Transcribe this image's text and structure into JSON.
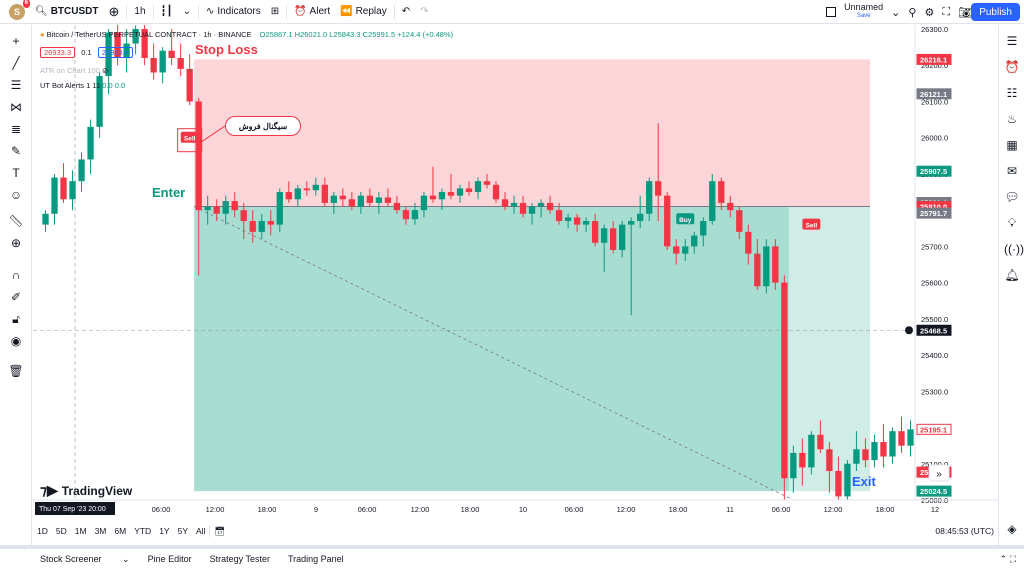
{
  "topbar": {
    "avatar_letter": "S",
    "notif_count": "6",
    "symbol": "BTCUSDT",
    "interval": "1h",
    "indicators": "Indicators",
    "alert": "Alert",
    "replay": "Replay",
    "layout_name": "Unnamed",
    "layout_status": "Save",
    "publish": "Publish"
  },
  "legend": {
    "title": "Bitcoin / TetherUS PERPETUAL CONTRACT · 1h · BINANCE",
    "ohlc": "O25867.1 H26021.0 L25843.3 C25991.5 +124.4 (+0.48%)",
    "bid": "26933.3",
    "spread": "0.1",
    "ask": "26933.4",
    "ind1": "ATR on Chart 100",
    "ind2": "UT Bot Alerts 1 11",
    "ind2_vals": "0.0  0.0"
  },
  "annotations": {
    "stop_loss": "Stop Loss",
    "enter": "Enter",
    "exit": "Exit",
    "sell_signal": "سیگنال فروش",
    "sell_tag": "Sell",
    "buy_tag": "Buy"
  },
  "price_axis": {
    "ticks": [
      "26300.0",
      "26200.0",
      "26100.0",
      "26000.0",
      "25900.0",
      "25800.0",
      "25700.0",
      "25600.0",
      "25500.0",
      "25400.0",
      "25300.0",
      "25200.0",
      "25100.0",
      "25000.0"
    ],
    "labels": [
      {
        "text": "26216.1",
        "color": "#f23645"
      },
      {
        "text": "26121.1",
        "color": "#787b86"
      },
      {
        "text": "25907.5",
        "color": "#089981"
      },
      {
        "text": "25821.1",
        "color": "#787b86"
      },
      {
        "text": "25810.0",
        "color": "#f23645"
      },
      {
        "text": "25791.7",
        "color": "#787b86"
      },
      {
        "text": "25468.5",
        "color": "#131722"
      },
      {
        "text": "25195.1",
        "color": "#f23645"
      },
      {
        "text": "25076.8",
        "color": "#f23645"
      },
      {
        "text": "25024.5",
        "color": "#089981"
      }
    ]
  },
  "time_axis": {
    "ticks": [
      "06:00",
      "12:00",
      "18:00",
      "9",
      "06:00",
      "12:00",
      "18:00",
      "10",
      "06:00",
      "12:00",
      "18:00",
      "11",
      "06:00",
      "12:00",
      "18:00",
      "12"
    ],
    "crosshair": "Thu 07 Sep '23",
    "crosshair_time": "20:00"
  },
  "bottombar": {
    "ranges": [
      "1D",
      "5D",
      "1M",
      "3M",
      "6M",
      "YTD",
      "1Y",
      "5Y",
      "All"
    ],
    "clock": "08:45:53 (UTC)"
  },
  "footer": {
    "tabs": [
      "Stock Screener",
      "Pine Editor",
      "Strategy Tester",
      "Trading Panel"
    ]
  },
  "colors": {
    "up": "#089981",
    "down": "#f23645",
    "stop_zone": "#fcd5d8",
    "target_zone": "#a8ddd2"
  },
  "chart_data": {
    "type": "candlestick",
    "y_range": [
      25000,
      26300
    ],
    "candles": [
      {
        "o": 25760,
        "h": 25800,
        "l": 25740,
        "c": 25790
      },
      {
        "o": 25790,
        "h": 25900,
        "l": 25760,
        "c": 25890
      },
      {
        "o": 25890,
        "h": 25930,
        "l": 25820,
        "c": 25830
      },
      {
        "o": 25830,
        "h": 25910,
        "l": 25800,
        "c": 25880
      },
      {
        "o": 25880,
        "h": 25960,
        "l": 25850,
        "c": 25940
      },
      {
        "o": 25940,
        "h": 26050,
        "l": 25900,
        "c": 26030
      },
      {
        "o": 26030,
        "h": 26180,
        "l": 26000,
        "c": 26170
      },
      {
        "o": 26170,
        "h": 26300,
        "l": 26120,
        "c": 26290
      },
      {
        "o": 26290,
        "h": 26330,
        "l": 26200,
        "c": 26220
      },
      {
        "o": 26220,
        "h": 26300,
        "l": 26180,
        "c": 26260
      },
      {
        "o": 26260,
        "h": 26310,
        "l": 26230,
        "c": 26300
      },
      {
        "o": 26300,
        "h": 26320,
        "l": 26200,
        "c": 26220
      },
      {
        "o": 26220,
        "h": 26260,
        "l": 26160,
        "c": 26180
      },
      {
        "o": 26180,
        "h": 26250,
        "l": 26150,
        "c": 26240
      },
      {
        "o": 26240,
        "h": 26300,
        "l": 26200,
        "c": 26220
      },
      {
        "o": 26220,
        "h": 26260,
        "l": 26170,
        "c": 26190
      },
      {
        "o": 26190,
        "h": 26230,
        "l": 26090,
        "c": 26100
      },
      {
        "o": 26100,
        "h": 26110,
        "l": 25620,
        "c": 25800
      },
      {
        "o": 25800,
        "h": 25840,
        "l": 25760,
        "c": 25810
      },
      {
        "o": 25810,
        "h": 25830,
        "l": 25770,
        "c": 25790
      },
      {
        "o": 25790,
        "h": 25840,
        "l": 25760,
        "c": 25825
      },
      {
        "o": 25825,
        "h": 25850,
        "l": 25780,
        "c": 25800
      },
      {
        "o": 25800,
        "h": 25820,
        "l": 25720,
        "c": 25770
      },
      {
        "o": 25770,
        "h": 25800,
        "l": 25710,
        "c": 25740
      },
      {
        "o": 25740,
        "h": 25790,
        "l": 25720,
        "c": 25770
      },
      {
        "o": 25770,
        "h": 25800,
        "l": 25730,
        "c": 25760
      },
      {
        "o": 25760,
        "h": 25860,
        "l": 25740,
        "c": 25850
      },
      {
        "o": 25850,
        "h": 25880,
        "l": 25820,
        "c": 25830
      },
      {
        "o": 25830,
        "h": 25870,
        "l": 25810,
        "c": 25860
      },
      {
        "o": 25860,
        "h": 25880,
        "l": 25840,
        "c": 25855
      },
      {
        "o": 25855,
        "h": 25890,
        "l": 25840,
        "c": 25870
      },
      {
        "o": 25870,
        "h": 25890,
        "l": 25810,
        "c": 25820
      },
      {
        "o": 25820,
        "h": 25850,
        "l": 25790,
        "c": 25840
      },
      {
        "o": 25840,
        "h": 25860,
        "l": 25810,
        "c": 25830
      },
      {
        "o": 25830,
        "h": 25850,
        "l": 25800,
        "c": 25810
      },
      {
        "o": 25810,
        "h": 25850,
        "l": 25790,
        "c": 25840
      },
      {
        "o": 25840,
        "h": 25860,
        "l": 25810,
        "c": 25820
      },
      {
        "o": 25820,
        "h": 25850,
        "l": 25790,
        "c": 25835
      },
      {
        "o": 25835,
        "h": 25860,
        "l": 25810,
        "c": 25820
      },
      {
        "o": 25820,
        "h": 25840,
        "l": 25790,
        "c": 25800
      },
      {
        "o": 25800,
        "h": 25810,
        "l": 25760,
        "c": 25775
      },
      {
        "o": 25775,
        "h": 25820,
        "l": 25760,
        "c": 25800
      },
      {
        "o": 25800,
        "h": 25850,
        "l": 25780,
        "c": 25840
      },
      {
        "o": 25840,
        "h": 25920,
        "l": 25820,
        "c": 25830
      },
      {
        "o": 25830,
        "h": 25860,
        "l": 25800,
        "c": 25850
      },
      {
        "o": 25850,
        "h": 25900,
        "l": 25830,
        "c": 25840
      },
      {
        "o": 25840,
        "h": 25870,
        "l": 25820,
        "c": 25860
      },
      {
        "o": 25860,
        "h": 25880,
        "l": 25840,
        "c": 25850
      },
      {
        "o": 25850,
        "h": 25890,
        "l": 25830,
        "c": 25880
      },
      {
        "o": 25880,
        "h": 25900,
        "l": 25860,
        "c": 25870
      },
      {
        "o": 25870,
        "h": 25880,
        "l": 25820,
        "c": 25830
      },
      {
        "o": 25830,
        "h": 25850,
        "l": 25800,
        "c": 25810
      },
      {
        "o": 25810,
        "h": 25840,
        "l": 25790,
        "c": 25820
      },
      {
        "o": 25820,
        "h": 25840,
        "l": 25780,
        "c": 25790
      },
      {
        "o": 25790,
        "h": 25820,
        "l": 25760,
        "c": 25810
      },
      {
        "o": 25810,
        "h": 25830,
        "l": 25780,
        "c": 25820
      },
      {
        "o": 25820,
        "h": 25840,
        "l": 25790,
        "c": 25800
      },
      {
        "o": 25800,
        "h": 25820,
        "l": 25760,
        "c": 25770
      },
      {
        "o": 25770,
        "h": 25790,
        "l": 25750,
        "c": 25780
      },
      {
        "o": 25780,
        "h": 25790,
        "l": 25740,
        "c": 25760
      },
      {
        "o": 25760,
        "h": 25780,
        "l": 25740,
        "c": 25770
      },
      {
        "o": 25770,
        "h": 25790,
        "l": 25700,
        "c": 25710
      },
      {
        "o": 25710,
        "h": 25760,
        "l": 25630,
        "c": 25750
      },
      {
        "o": 25750,
        "h": 25770,
        "l": 25680,
        "c": 25690
      },
      {
        "o": 25690,
        "h": 25770,
        "l": 25670,
        "c": 25760
      },
      {
        "o": 25760,
        "h": 25780,
        "l": 25510,
        "c": 25770
      },
      {
        "o": 25770,
        "h": 25840,
        "l": 25750,
        "c": 25790
      },
      {
        "o": 25790,
        "h": 25890,
        "l": 25770,
        "c": 25880
      },
      {
        "o": 25880,
        "h": 26040,
        "l": 25770,
        "c": 25840
      },
      {
        "o": 25840,
        "h": 25850,
        "l": 25690,
        "c": 25700
      },
      {
        "o": 25700,
        "h": 25720,
        "l": 25650,
        "c": 25680
      },
      {
        "o": 25680,
        "h": 25720,
        "l": 25660,
        "c": 25700
      },
      {
        "o": 25700,
        "h": 25740,
        "l": 25680,
        "c": 25730
      },
      {
        "o": 25730,
        "h": 25780,
        "l": 25700,
        "c": 25770
      },
      {
        "o": 25770,
        "h": 25900,
        "l": 25760,
        "c": 25880
      },
      {
        "o": 25880,
        "h": 25890,
        "l": 25800,
        "c": 25820
      },
      {
        "o": 25820,
        "h": 25840,
        "l": 25780,
        "c": 25800
      },
      {
        "o": 25800,
        "h": 25810,
        "l": 25720,
        "c": 25740
      },
      {
        "o": 25740,
        "h": 25760,
        "l": 25650,
        "c": 25680
      },
      {
        "o": 25680,
        "h": 25720,
        "l": 25580,
        "c": 25590
      },
      {
        "o": 25590,
        "h": 25720,
        "l": 25570,
        "c": 25700
      },
      {
        "o": 25700,
        "h": 25720,
        "l": 25580,
        "c": 25600
      },
      {
        "o": 25600,
        "h": 25620,
        "l": 25000,
        "c": 25060
      },
      {
        "o": 25060,
        "h": 25150,
        "l": 25020,
        "c": 25130
      },
      {
        "o": 25130,
        "h": 25170,
        "l": 25040,
        "c": 25090
      },
      {
        "o": 25090,
        "h": 25190,
        "l": 25070,
        "c": 25180
      },
      {
        "o": 25180,
        "h": 25220,
        "l": 25130,
        "c": 25140
      },
      {
        "o": 25140,
        "h": 25160,
        "l": 25020,
        "c": 25080
      },
      {
        "o": 25080,
        "h": 25120,
        "l": 25000,
        "c": 25010
      },
      {
        "o": 25010,
        "h": 25110,
        "l": 25000,
        "c": 25100
      },
      {
        "o": 25100,
        "h": 25190,
        "l": 25080,
        "c": 25140
      },
      {
        "o": 25140,
        "h": 25170,
        "l": 25090,
        "c": 25110
      },
      {
        "o": 25110,
        "h": 25180,
        "l": 25090,
        "c": 25160
      },
      {
        "o": 25160,
        "h": 25210,
        "l": 25090,
        "c": 25120
      },
      {
        "o": 25120,
        "h": 25200,
        "l": 25100,
        "c": 25190
      },
      {
        "o": 25190,
        "h": 25230,
        "l": 25130,
        "c": 25150
      },
      {
        "o": 25150,
        "h": 25220,
        "l": 25120,
        "c": 25195
      }
    ],
    "position": {
      "entry": 25810,
      "stop": 26216.1,
      "target": 25024.5
    }
  }
}
